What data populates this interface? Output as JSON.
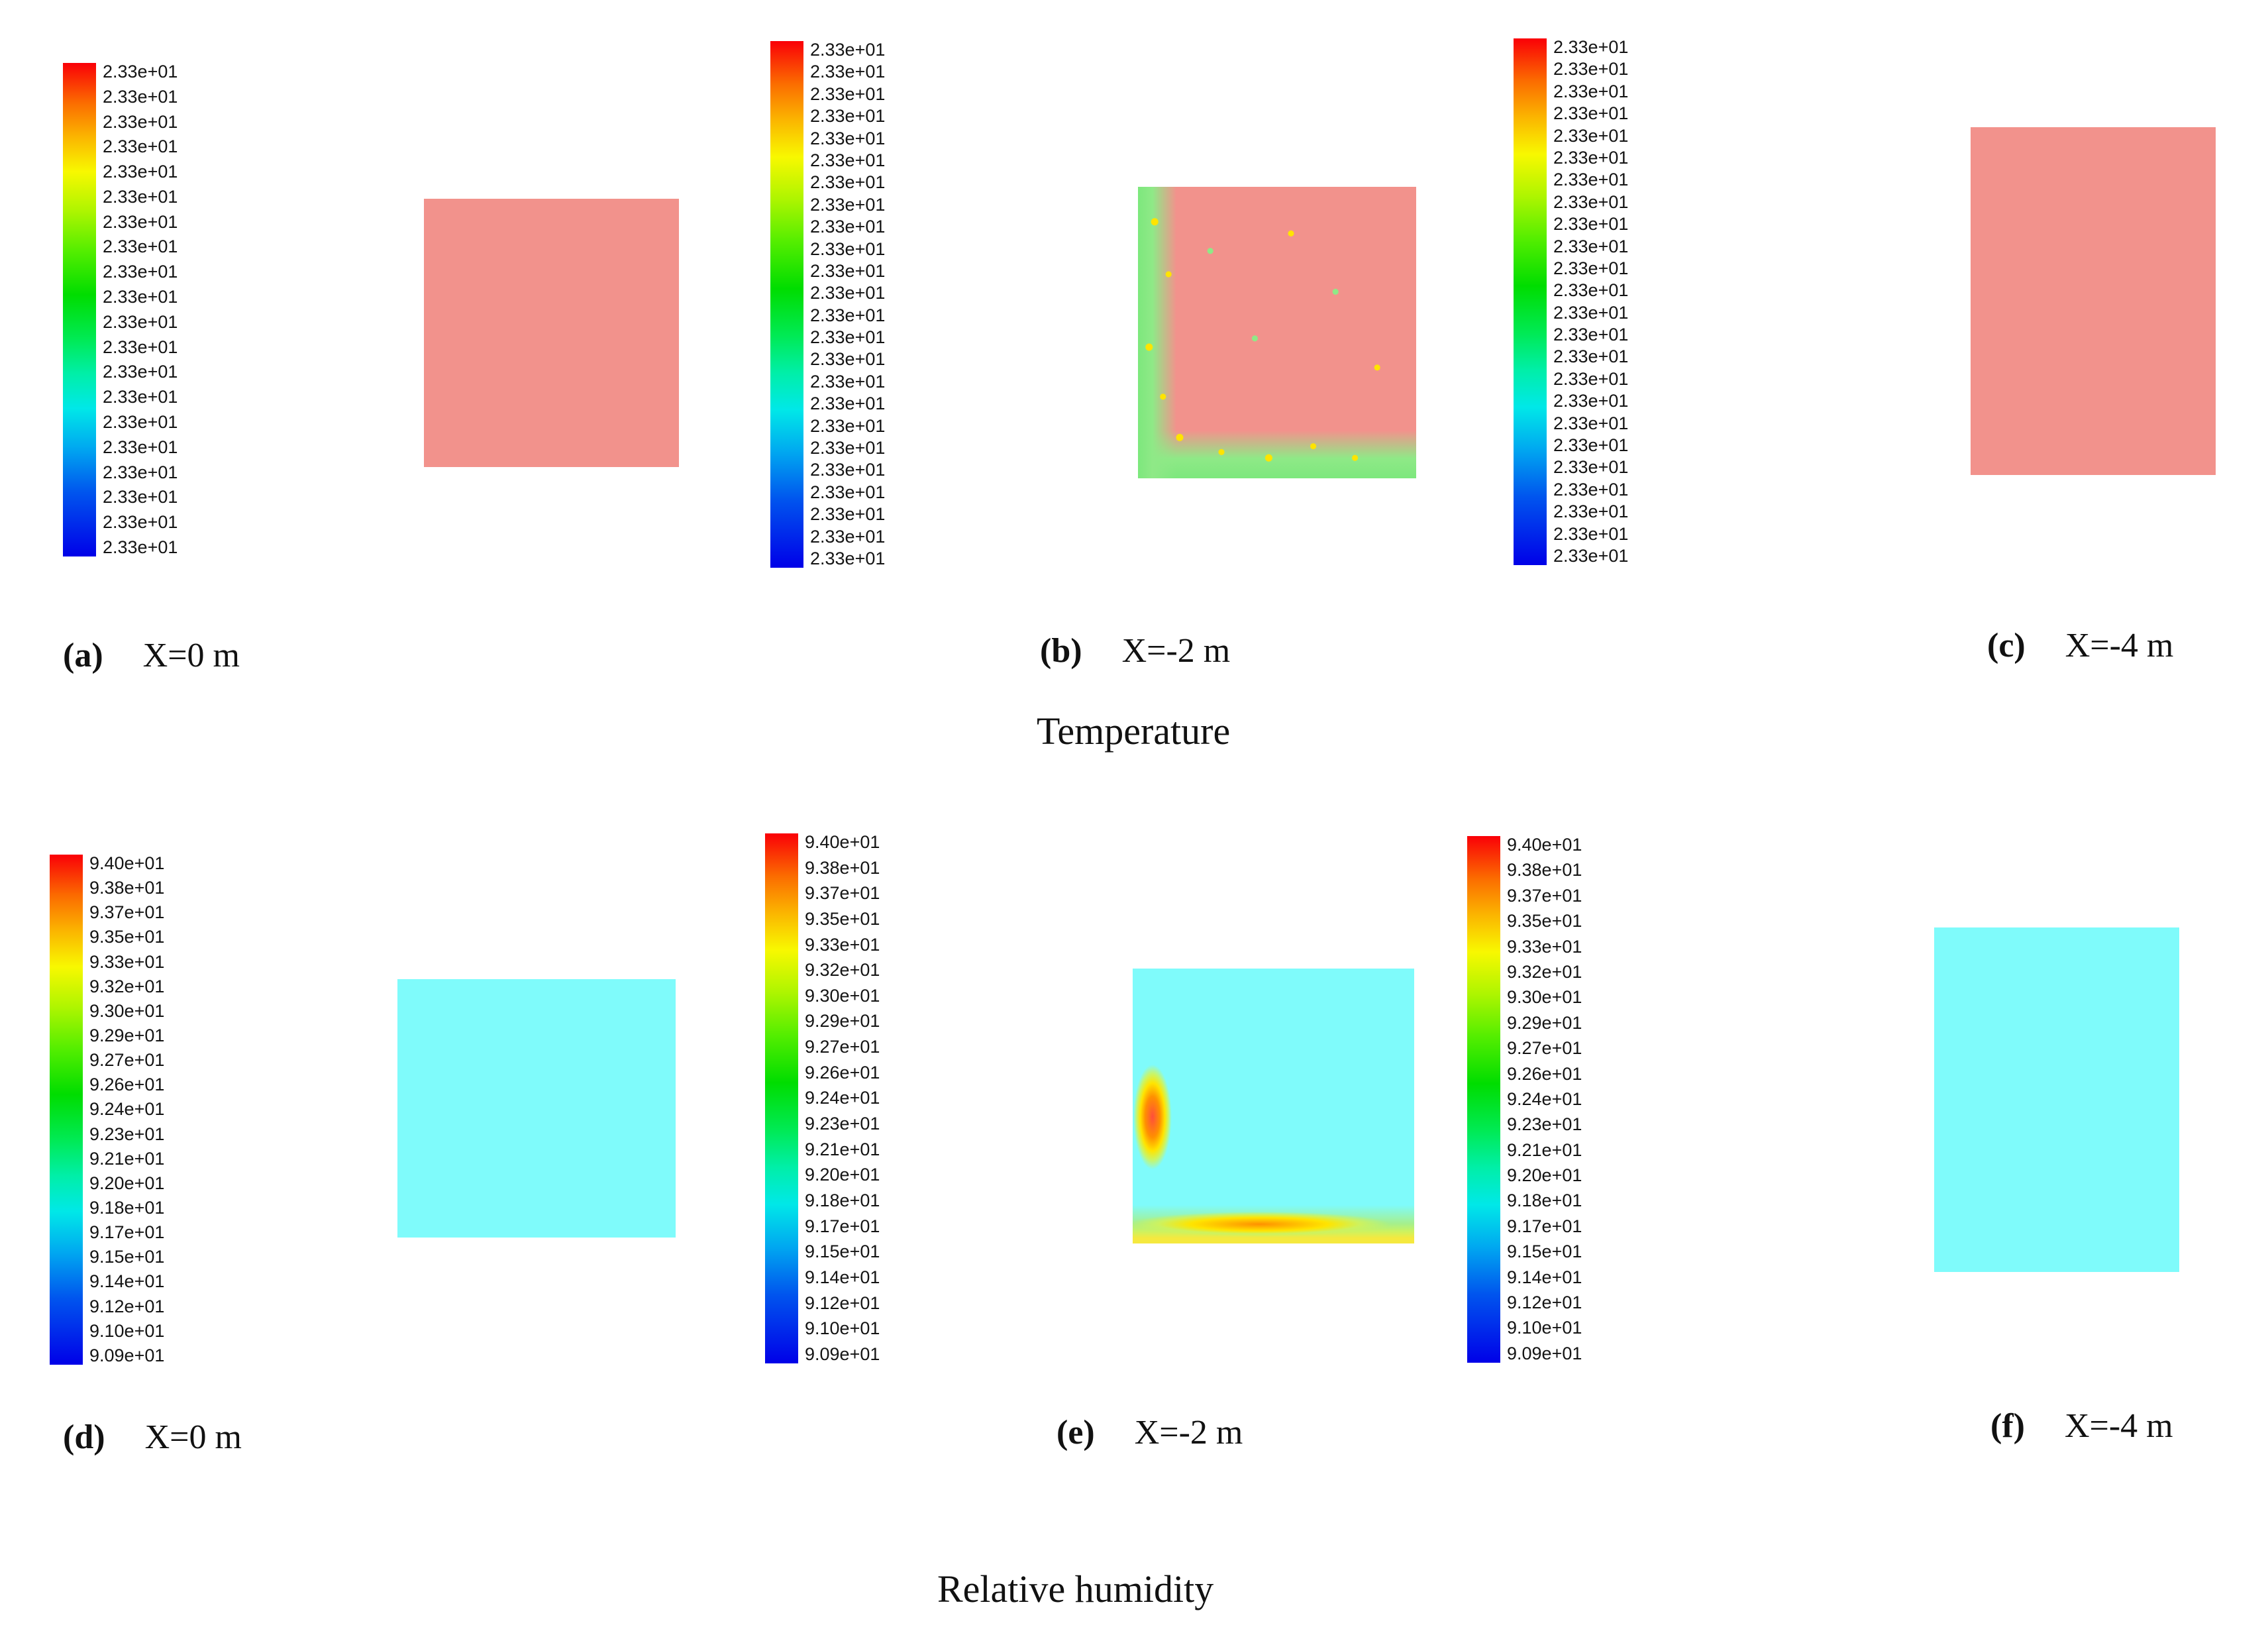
{
  "captions": {
    "temperature": "Temperature",
    "humidity": "Relative humidity"
  },
  "panels": {
    "a": {
      "label": "(a)",
      "position": "X=0 m",
      "ticks": [
        "2.33e+01",
        "2.33e+01",
        "2.33e+01",
        "2.33e+01",
        "2.33e+01",
        "2.33e+01",
        "2.33e+01",
        "2.33e+01",
        "2.33e+01",
        "2.33e+01",
        "2.33e+01",
        "2.33e+01",
        "2.33e+01",
        "2.33e+01",
        "2.33e+01",
        "2.33e+01",
        "2.33e+01",
        "2.33e+01",
        "2.33e+01",
        "2.33e+01"
      ]
    },
    "b": {
      "label": "(b)",
      "position": "X=-2 m",
      "ticks": [
        "2.33e+01",
        "2.33e+01",
        "2.33e+01",
        "2.33e+01",
        "2.33e+01",
        "2.33e+01",
        "2.33e+01",
        "2.33e+01",
        "2.33e+01",
        "2.33e+01",
        "2.33e+01",
        "2.33e+01",
        "2.33e+01",
        "2.33e+01",
        "2.33e+01",
        "2.33e+01",
        "2.33e+01",
        "2.33e+01",
        "2.33e+01",
        "2.33e+01",
        "2.33e+01",
        "2.33e+01",
        "2.33e+01",
        "2.33e+01"
      ]
    },
    "c": {
      "label": "(c)",
      "position": "X=-4 m",
      "ticks": [
        "2.33e+01",
        "2.33e+01",
        "2.33e+01",
        "2.33e+01",
        "2.33e+01",
        "2.33e+01",
        "2.33e+01",
        "2.33e+01",
        "2.33e+01",
        "2.33e+01",
        "2.33e+01",
        "2.33e+01",
        "2.33e+01",
        "2.33e+01",
        "2.33e+01",
        "2.33e+01",
        "2.33e+01",
        "2.33e+01",
        "2.33e+01",
        "2.33e+01",
        "2.33e+01",
        "2.33e+01",
        "2.33e+01",
        "2.33e+01"
      ]
    },
    "d": {
      "label": "(d)",
      "position": "X=0 m",
      "ticks": [
        "9.40e+01",
        "9.38e+01",
        "9.37e+01",
        "9.35e+01",
        "9.33e+01",
        "9.32e+01",
        "9.30e+01",
        "9.29e+01",
        "9.27e+01",
        "9.26e+01",
        "9.24e+01",
        "9.23e+01",
        "9.21e+01",
        "9.20e+01",
        "9.18e+01",
        "9.17e+01",
        "9.15e+01",
        "9.14e+01",
        "9.12e+01",
        "9.10e+01",
        "9.09e+01"
      ]
    },
    "e": {
      "label": "(e)",
      "position": "X=-2 m",
      "ticks": [
        "9.40e+01",
        "9.38e+01",
        "9.37e+01",
        "9.35e+01",
        "9.33e+01",
        "9.32e+01",
        "9.30e+01",
        "9.29e+01",
        "9.27e+01",
        "9.26e+01",
        "9.24e+01",
        "9.23e+01",
        "9.21e+01",
        "9.20e+01",
        "9.18e+01",
        "9.17e+01",
        "9.15e+01",
        "9.14e+01",
        "9.12e+01",
        "9.10e+01",
        "9.09e+01"
      ]
    },
    "f": {
      "label": "(f)",
      "position": "X=-4 m",
      "ticks": [
        "9.40e+01",
        "9.38e+01",
        "9.37e+01",
        "9.35e+01",
        "9.33e+01",
        "9.32e+01",
        "9.30e+01",
        "9.29e+01",
        "9.27e+01",
        "9.26e+01",
        "9.24e+01",
        "9.23e+01",
        "9.21e+01",
        "9.20e+01",
        "9.18e+01",
        "9.17e+01",
        "9.15e+01",
        "9.14e+01",
        "9.12e+01",
        "9.10e+01",
        "9.09e+01"
      ]
    }
  },
  "colors": {
    "temperature_field": "#f2928c",
    "humidity_field": "#7ffbfb",
    "colorbar_top": "#fa0007",
    "colorbar_bottom": "#0000e8"
  },
  "chart_data": [
    {
      "type": "heatmap",
      "title": "Temperature",
      "legend_position": "left of each panel",
      "colorbar_range": [
        "2.33e+01",
        "2.33e+01"
      ],
      "panels": [
        {
          "label": "(a)",
          "plane": "X=0 m",
          "colorbar_ticks": [
            "2.33e+01",
            "2.33e+01",
            "2.33e+01",
            "2.33e+01",
            "2.33e+01",
            "2.33e+01",
            "2.33e+01",
            "2.33e+01",
            "2.33e+01",
            "2.33e+01",
            "2.33e+01",
            "2.33e+01",
            "2.33e+01",
            "2.33e+01",
            "2.33e+01",
            "2.33e+01",
            "2.33e+01",
            "2.33e+01",
            "2.33e+01",
            "2.33e+01"
          ],
          "field_summary": "uniform salmon field, temperature ~2.33e+01 everywhere"
        },
        {
          "label": "(b)",
          "plane": "X=-2 m",
          "colorbar_ticks": [
            "2.33e+01",
            "2.33e+01",
            "2.33e+01",
            "2.33e+01",
            "2.33e+01",
            "2.33e+01",
            "2.33e+01",
            "2.33e+01",
            "2.33e+01",
            "2.33e+01",
            "2.33e+01",
            "2.33e+01",
            "2.33e+01",
            "2.33e+01",
            "2.33e+01",
            "2.33e+01",
            "2.33e+01",
            "2.33e+01",
            "2.33e+01",
            "2.33e+01",
            "2.33e+01",
            "2.33e+01",
            "2.33e+01",
            "2.33e+01"
          ],
          "field_summary": "mostly salmon ~2.33e+01 with speckled green/yellow band along left edge and floor"
        },
        {
          "label": "(c)",
          "plane": "X=-4 m",
          "colorbar_ticks": [
            "2.33e+01",
            "2.33e+01",
            "2.33e+01",
            "2.33e+01",
            "2.33e+01",
            "2.33e+01",
            "2.33e+01",
            "2.33e+01",
            "2.33e+01",
            "2.33e+01",
            "2.33e+01",
            "2.33e+01",
            "2.33e+01",
            "2.33e+01",
            "2.33e+01",
            "2.33e+01",
            "2.33e+01",
            "2.33e+01",
            "2.33e+01",
            "2.33e+01",
            "2.33e+01",
            "2.33e+01",
            "2.33e+01",
            "2.33e+01"
          ],
          "field_summary": "uniform salmon field, temperature ~2.33e+01 everywhere"
        }
      ]
    },
    {
      "type": "heatmap",
      "title": "Relative humidity",
      "legend_position": "left of each panel",
      "colorbar_range": [
        "9.09e+01",
        "9.40e+01"
      ],
      "panels": [
        {
          "label": "(d)",
          "plane": "X=0 m",
          "colorbar_ticks": [
            "9.40e+01",
            "9.38e+01",
            "9.37e+01",
            "9.35e+01",
            "9.33e+01",
            "9.32e+01",
            "9.30e+01",
            "9.29e+01",
            "9.27e+01",
            "9.26e+01",
            "9.24e+01",
            "9.23e+01",
            "9.21e+01",
            "9.20e+01",
            "9.18e+01",
            "9.17e+01",
            "9.15e+01",
            "9.14e+01",
            "9.12e+01",
            "9.10e+01",
            "9.09e+01"
          ],
          "field_summary": "uniform cyan field, relative humidity ~9.2e+01"
        },
        {
          "label": "(e)",
          "plane": "X=-2 m",
          "colorbar_ticks": [
            "9.40e+01",
            "9.38e+01",
            "9.37e+01",
            "9.35e+01",
            "9.33e+01",
            "9.32e+01",
            "9.30e+01",
            "9.29e+01",
            "9.27e+01",
            "9.26e+01",
            "9.24e+01",
            "9.23e+01",
            "9.21e+01",
            "9.20e+01",
            "9.18e+01",
            "9.17e+01",
            "9.15e+01",
            "9.14e+01",
            "9.12e+01",
            "9.10e+01",
            "9.09e+01"
          ],
          "field_summary": "mostly cyan ~9.2e+01 with higher humidity (yellow-orange-red up to ~9.40e+01) near left wall and along floor"
        },
        {
          "label": "(f)",
          "plane": "X=-4 m",
          "colorbar_ticks": [
            "9.40e+01",
            "9.38e+01",
            "9.37e+01",
            "9.35e+01",
            "9.33e+01",
            "9.32e+01",
            "9.30e+01",
            "9.29e+01",
            "9.27e+01",
            "9.26e+01",
            "9.24e+01",
            "9.23e+01",
            "9.21e+01",
            "9.20e+01",
            "9.18e+01",
            "9.17e+01",
            "9.15e+01",
            "9.14e+01",
            "9.12e+01",
            "9.10e+01",
            "9.09e+01"
          ],
          "field_summary": "uniform cyan field, relative humidity ~9.2e+01"
        }
      ]
    }
  ]
}
